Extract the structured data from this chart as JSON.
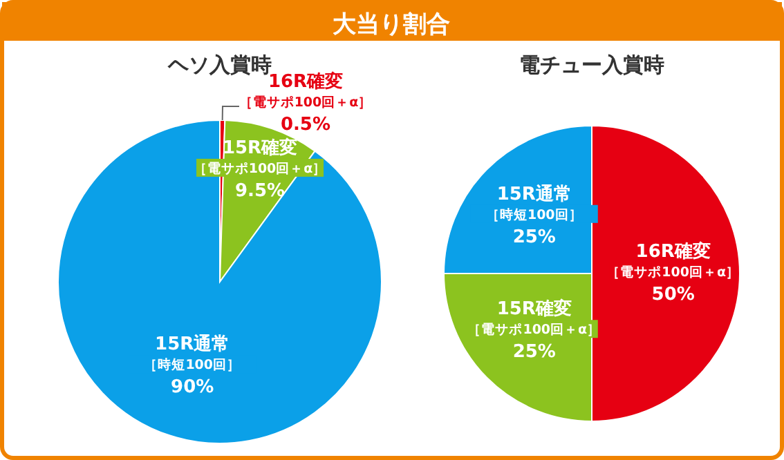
{
  "chart_data": [
    {
      "type": "pie",
      "title": "大当り割合",
      "subtitle": "ヘソ入賞時",
      "categories": [
        "16R確変［電サポ100回＋α］",
        "15R確変［電サポ100回＋α］",
        "15R通常［時短100回］"
      ],
      "values": [
        0.5,
        9.5,
        90
      ],
      "colors": [
        "#e60012",
        "#8cc31f",
        "#0ba0e8"
      ],
      "value_labels": [
        "0.5%",
        "9.5%",
        "90%"
      ]
    },
    {
      "type": "pie",
      "subtitle": "電チュー入賞時",
      "categories": [
        "16R確変［電サポ100回＋α］",
        "15R確変［電サポ100回＋α］",
        "15R通常［時短100回］"
      ],
      "values": [
        50,
        25,
        25
      ],
      "colors": [
        "#e60012",
        "#8cc31f",
        "#0ba0e8"
      ],
      "value_labels": [
        "50%",
        "25%",
        "25%"
      ]
    }
  ]
}
